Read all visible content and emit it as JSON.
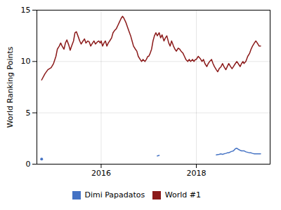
{
  "chart_data": {
    "type": "line",
    "ylabel": "World Ranking Points",
    "xlim": [
      2014.65,
      2019.55
    ],
    "xticks": [
      2016,
      2018
    ],
    "ylim": [
      0,
      15
    ],
    "yticks": [
      0,
      5,
      10,
      15
    ],
    "grid": true,
    "legend": "bottom",
    "series": [
      {
        "name": "Dimi Papadatos",
        "color": "#4472c4",
        "x": [
          2014.75,
          null,
          2017.18,
          2017.22,
          null,
          2018.42,
          2018.48,
          2018.52,
          2018.55,
          2018.58,
          2018.62,
          2018.65,
          2018.68,
          2018.72,
          2018.75,
          2018.78,
          2018.82,
          2018.85,
          2018.88,
          2018.92,
          2018.95,
          2018.98,
          2019.0,
          2019.04,
          2019.08,
          2019.12,
          2019.15,
          2019.18,
          2019.22,
          2019.25,
          2019.28,
          2019.32,
          2019.35
        ],
        "values": [
          0.5,
          null,
          0.8,
          0.85,
          null,
          0.9,
          0.95,
          1.0,
          0.95,
          1.0,
          1.05,
          1.1,
          1.1,
          1.2,
          1.25,
          1.3,
          1.5,
          1.55,
          1.45,
          1.35,
          1.3,
          1.3,
          1.3,
          1.2,
          1.15,
          1.1,
          1.1,
          1.05,
          1.0,
          1.0,
          1.0,
          1.0,
          1.0
        ]
      },
      {
        "name": "World #1",
        "color": "#8b1a1a",
        "x": [
          2014.75,
          2014.82,
          2014.88,
          2014.95,
          2015.0,
          2015.05,
          2015.08,
          2015.12,
          2015.15,
          2015.18,
          2015.22,
          2015.25,
          2015.28,
          2015.32,
          2015.35,
          2015.38,
          2015.42,
          2015.45,
          2015.48,
          2015.52,
          2015.55,
          2015.58,
          2015.62,
          2015.65,
          2015.68,
          2015.72,
          2015.75,
          2015.78,
          2015.82,
          2015.85,
          2015.88,
          2015.92,
          2015.95,
          2015.98,
          2016.0,
          2016.03,
          2016.06,
          2016.09,
          2016.12,
          2016.15,
          2016.18,
          2016.22,
          2016.25,
          2016.28,
          2016.32,
          2016.35,
          2016.38,
          2016.42,
          2016.45,
          2016.48,
          2016.52,
          2016.55,
          2016.58,
          2016.62,
          2016.65,
          2016.68,
          2016.72,
          2016.75,
          2016.78,
          2016.82,
          2016.85,
          2016.88,
          2016.92,
          2016.95,
          2016.98,
          2017.0,
          2017.03,
          2017.06,
          2017.09,
          2017.12,
          2017.15,
          2017.18,
          2017.22,
          2017.25,
          2017.28,
          2017.32,
          2017.35,
          2017.38,
          2017.42,
          2017.45,
          2017.48,
          2017.52,
          2017.55,
          2017.58,
          2017.62,
          2017.65,
          2017.68,
          2017.72,
          2017.75,
          2017.78,
          2017.82,
          2017.85,
          2017.88,
          2017.92,
          2017.95,
          2017.98,
          2018.0,
          2018.04,
          2018.08,
          2018.12,
          2018.15,
          2018.18,
          2018.22,
          2018.25,
          2018.28,
          2018.32,
          2018.35,
          2018.38,
          2018.42,
          2018.45,
          2018.48,
          2018.52,
          2018.55,
          2018.58,
          2018.62,
          2018.65,
          2018.68,
          2018.72,
          2018.75,
          2018.78,
          2018.82,
          2018.85,
          2018.88,
          2018.92,
          2018.95,
          2018.98,
          2019.0,
          2019.04,
          2019.08,
          2019.12,
          2019.15,
          2019.18,
          2019.22,
          2019.25,
          2019.28,
          2019.32,
          2019.35
        ],
        "values": [
          8.2,
          8.8,
          9.2,
          9.4,
          9.8,
          10.5,
          11.2,
          11.5,
          11.8,
          11.5,
          11.2,
          11.8,
          12.1,
          11.6,
          11.1,
          11.5,
          12.0,
          12.8,
          12.9,
          12.4,
          12.0,
          11.7,
          12.0,
          12.2,
          11.8,
          12.0,
          11.9,
          11.5,
          11.8,
          12.0,
          11.7,
          11.9,
          12.0,
          11.8,
          12.0,
          11.5,
          11.8,
          12.0,
          11.5,
          11.8,
          12.0,
          12.3,
          12.8,
          13.0,
          13.2,
          13.5,
          13.8,
          14.2,
          14.4,
          14.2,
          13.8,
          13.4,
          13.0,
          12.5,
          12.0,
          11.5,
          11.2,
          11.0,
          10.5,
          10.2,
          10.0,
          10.2,
          10.0,
          10.2,
          10.5,
          10.5,
          10.8,
          11.2,
          12.0,
          12.5,
          12.8,
          12.5,
          12.8,
          12.3,
          12.6,
          12.0,
          12.3,
          12.5,
          11.8,
          11.5,
          12.0,
          11.5,
          11.2,
          11.0,
          11.3,
          11.2,
          11.0,
          10.8,
          10.5,
          10.2,
          10.0,
          10.2,
          10.0,
          10.2,
          10.0,
          10.2,
          10.2,
          10.5,
          10.3,
          10.0,
          10.2,
          9.8,
          9.5,
          9.8,
          10.0,
          10.2,
          9.8,
          9.5,
          9.2,
          9.0,
          9.3,
          9.5,
          9.8,
          9.5,
          9.2,
          9.5,
          9.8,
          9.5,
          9.3,
          9.5,
          9.8,
          10.0,
          9.8,
          9.5,
          9.8,
          10.0,
          9.8,
          10.0,
          10.5,
          10.8,
          11.2,
          11.5,
          11.8,
          12.0,
          11.8,
          11.5,
          11.5
        ]
      }
    ]
  }
}
